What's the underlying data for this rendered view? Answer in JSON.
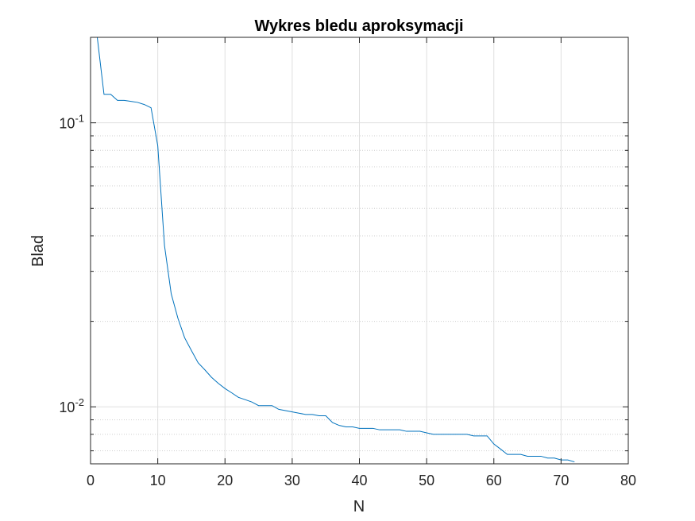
{
  "chart_data": {
    "type": "line",
    "title": "Wykres bledu aproksymacji",
    "xlabel": "N",
    "ylabel": "Blad",
    "xlim": [
      0,
      80
    ],
    "ylim": [
      0.0063,
      0.2
    ],
    "yscale": "log",
    "grid": true,
    "xticks": [
      "0",
      "10",
      "20",
      "30",
      "40",
      "50",
      "60",
      "70",
      "80"
    ],
    "yticks": [
      {
        "base": "10",
        "exp": "-1",
        "value": 0.1
      },
      {
        "base": "10",
        "exp": "-2",
        "value": 0.01
      }
    ],
    "series": [
      {
        "color": "#0072bd",
        "x": [
          1,
          2,
          3,
          4,
          5,
          6,
          7,
          8,
          9,
          10,
          11,
          12,
          13,
          14,
          15,
          16,
          17,
          18,
          19,
          20,
          21,
          22,
          23,
          24,
          25,
          26,
          27,
          28,
          29,
          30,
          31,
          32,
          33,
          34,
          35,
          36,
          37,
          38,
          39,
          40,
          41,
          42,
          43,
          44,
          45,
          46,
          47,
          48,
          49,
          50,
          51,
          52,
          53,
          54,
          55,
          56,
          57,
          58,
          59,
          60,
          61,
          62,
          63,
          64,
          65,
          66,
          67,
          68,
          69,
          70,
          71,
          72
        ],
        "y": [
          0.2,
          0.126,
          0.126,
          0.12,
          0.12,
          0.119,
          0.118,
          0.116,
          0.113,
          0.083,
          0.037,
          0.025,
          0.0205,
          0.0175,
          0.0158,
          0.0143,
          0.0135,
          0.0127,
          0.0121,
          0.0116,
          0.0112,
          0.0108,
          0.0106,
          0.0104,
          0.0101,
          0.0101,
          0.0101,
          0.0098,
          0.0097,
          0.0096,
          0.0095,
          0.0094,
          0.0094,
          0.0093,
          0.0093,
          0.0088,
          0.0086,
          0.0085,
          0.0085,
          0.0084,
          0.0084,
          0.0084,
          0.0083,
          0.0083,
          0.0083,
          0.0083,
          0.0082,
          0.0082,
          0.0082,
          0.0081,
          0.008,
          0.008,
          0.008,
          0.008,
          0.008,
          0.008,
          0.0079,
          0.0079,
          0.0079,
          0.0074,
          0.0071,
          0.0068,
          0.0068,
          0.0068,
          0.0067,
          0.0067,
          0.0067,
          0.0066,
          0.0066,
          0.0065,
          0.0065,
          0.0064
        ]
      }
    ]
  }
}
